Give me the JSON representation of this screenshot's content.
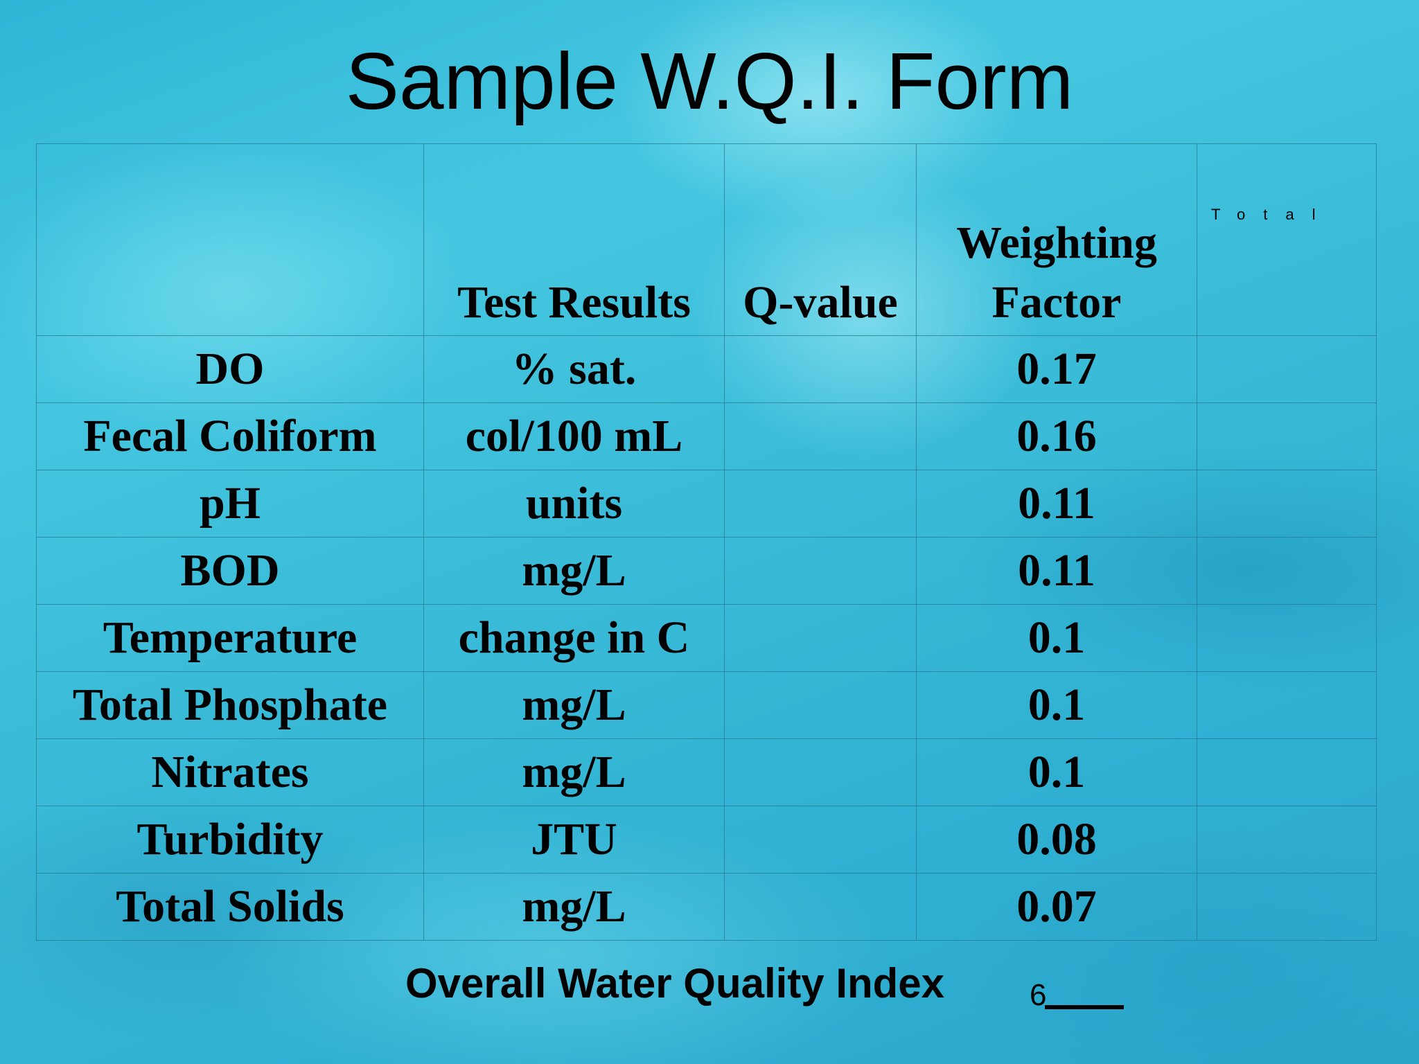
{
  "title": "Sample W.Q.I. Form",
  "table": {
    "headers": {
      "test_results": "Test Results",
      "q_value": "Q-value",
      "weighting_line1": "Weighting",
      "weighting_line2": "Factor",
      "total": "Total"
    },
    "rows": [
      {
        "parameter": "DO",
        "unit": "% sat.",
        "q_value": "",
        "weight": "0.17",
        "total": ""
      },
      {
        "parameter": "Fecal Coliform",
        "unit": "col/100 mL",
        "q_value": "",
        "weight": "0.16",
        "total": ""
      },
      {
        "parameter": "pH",
        "unit": "units",
        "q_value": "",
        "weight": "0.11",
        "total": ""
      },
      {
        "parameter": "BOD",
        "unit": "mg/L",
        "q_value": "",
        "weight": "0.11",
        "total": ""
      },
      {
        "parameter": "Temperature",
        "unit": "change in C",
        "q_value": "",
        "weight": "0.1",
        "total": ""
      },
      {
        "parameter": "Total Phosphate",
        "unit": "mg/L",
        "q_value": "",
        "weight": "0.1",
        "total": ""
      },
      {
        "parameter": "Nitrates",
        "unit": "mg/L",
        "q_value": "",
        "weight": "0.1",
        "total": ""
      },
      {
        "parameter": "Turbidity",
        "unit": "JTU",
        "q_value": "",
        "weight": "0.08",
        "total": ""
      },
      {
        "parameter": "Total Solids",
        "unit": "mg/L",
        "q_value": "",
        "weight": "0.07",
        "total": ""
      }
    ]
  },
  "overall_label": "Overall Water Quality Index",
  "slide_number": "6"
}
